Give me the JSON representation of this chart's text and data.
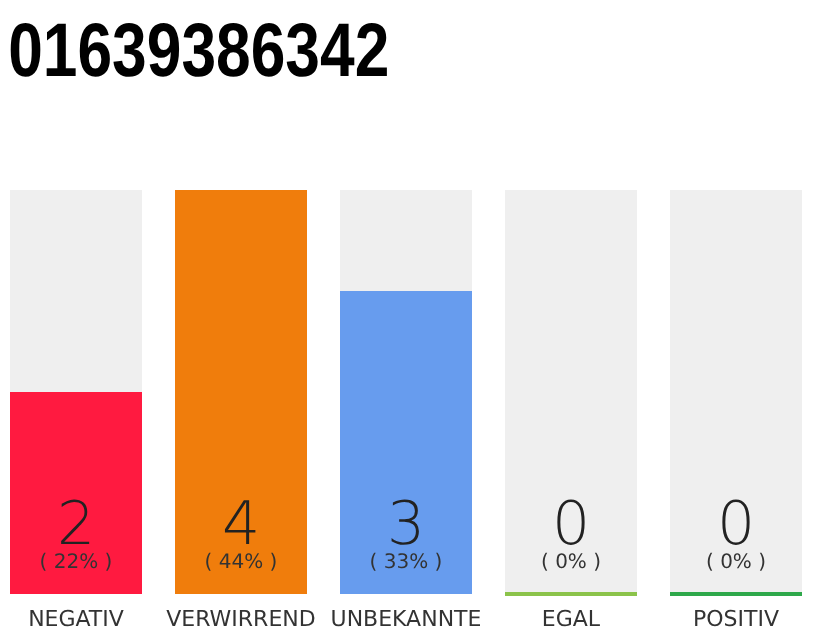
{
  "chart_data": {
    "type": "bar",
    "title": "01639386342",
    "categories": [
      "NEGATIV",
      "VERWIRREND",
      "UNBEKANNTE",
      "EGAL",
      "POSITIV"
    ],
    "values": [
      2,
      4,
      3,
      0,
      0
    ],
    "colors": [
      "#ff1a40",
      "#f07d0c",
      "#679cee",
      "#8bc34a",
      "#2ea84a"
    ],
    "value_labels": [
      "2",
      "4",
      "3",
      "0",
      "0"
    ],
    "annotations": [
      "( 22% )",
      "( 44% )",
      "( 33% )",
      "( 0% )",
      "( 0% )"
    ]
  }
}
